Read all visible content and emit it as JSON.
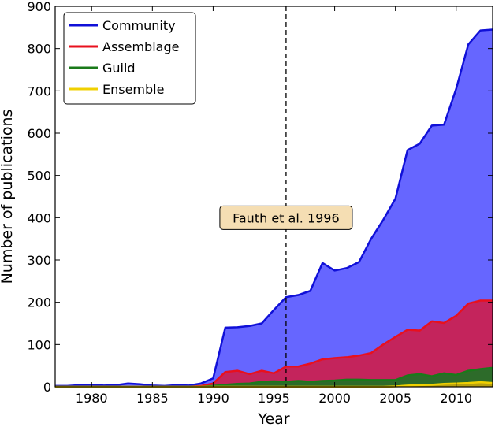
{
  "chart_data": {
    "type": "area",
    "xlabel": "Year",
    "ylabel": "Number of publications",
    "xlim": [
      1977,
      2013
    ],
    "ylim": [
      0,
      900
    ],
    "xticks": [
      1980,
      1985,
      1990,
      1995,
      2000,
      2005,
      2010
    ],
    "yticks": [
      0,
      100,
      200,
      300,
      400,
      500,
      600,
      700,
      800,
      900
    ],
    "grid": false,
    "legend_position": "top-left",
    "x": [
      1977,
      1978,
      1979,
      1980,
      1981,
      1982,
      1983,
      1984,
      1985,
      1986,
      1987,
      1988,
      1989,
      1990,
      1991,
      1992,
      1993,
      1994,
      1995,
      1996,
      1997,
      1998,
      1999,
      2000,
      2001,
      2002,
      2003,
      2004,
      2005,
      2006,
      2007,
      2008,
      2009,
      2010,
      2011,
      2012,
      2013
    ],
    "series": [
      {
        "name": "Community",
        "line_color": "#1010d8",
        "fill_color": "#6666ff",
        "values": [
          2,
          2,
          4,
          5,
          3,
          4,
          8,
          6,
          3,
          2,
          4,
          3,
          8,
          20,
          140,
          141,
          144,
          150,
          182,
          212,
          217,
          227,
          293,
          275,
          281,
          295,
          350,
          395,
          445,
          560,
          575,
          618,
          620,
          705,
          810,
          843,
          845
        ]
      },
      {
        "name": "Assemblage",
        "line_color": "#e8101e",
        "fill_color": "#c4245c",
        "values": [
          0,
          0,
          0,
          0,
          0,
          0,
          0,
          0,
          0,
          0,
          0,
          0,
          2,
          8,
          35,
          38,
          30,
          38,
          32,
          48,
          48,
          55,
          65,
          68,
          70,
          74,
          80,
          100,
          118,
          135,
          133,
          155,
          151,
          168,
          197,
          204,
          204
        ]
      },
      {
        "name": "Guild",
        "line_color": "#1a7a1a",
        "fill_color": "#2d6b2a",
        "values": [
          0,
          0,
          0,
          0,
          0,
          0,
          0,
          0,
          0,
          0,
          0,
          0,
          0,
          2,
          5,
          7,
          8,
          12,
          13,
          12,
          14,
          12,
          14,
          15,
          17,
          17,
          16,
          16,
          16,
          27,
          30,
          25,
          32,
          28,
          38,
          42,
          45
        ]
      },
      {
        "name": "Ensemble",
        "line_color": "#f0d000",
        "fill_color": "#b8a010",
        "values": [
          0,
          0,
          0,
          0,
          0,
          0,
          0,
          0,
          0,
          0,
          0,
          0,
          0,
          0,
          0,
          0,
          0,
          0,
          0,
          0,
          0,
          0,
          0,
          0,
          0,
          0,
          0,
          0,
          1,
          3,
          4,
          5,
          7,
          8,
          9,
          11,
          9
        ]
      }
    ],
    "vline": {
      "x": 1996,
      "style": "dashed"
    },
    "annotation": {
      "text": "Fauth et al. 1996",
      "x": 1996,
      "y": 400,
      "box_color": "#f5deb3"
    }
  }
}
